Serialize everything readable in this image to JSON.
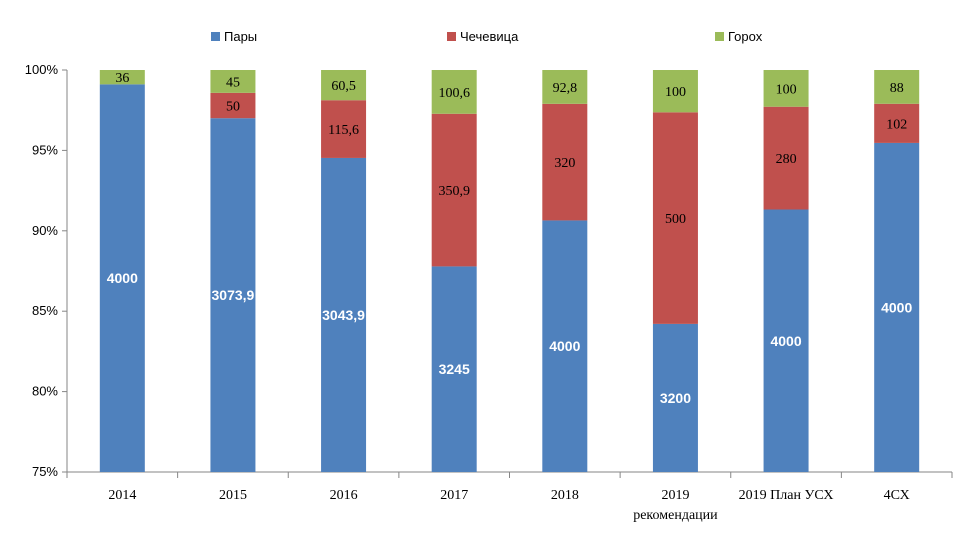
{
  "chart_data": {
    "type": "bar",
    "stacked": "percent",
    "categories": [
      "2014",
      "2015",
      "2016",
      "2017",
      "2018",
      "2019\nрекомендации",
      "2019 План УСХ",
      "4СХ"
    ],
    "series": [
      {
        "name": "Пары",
        "color": "#4F81BD",
        "values": [
          4000,
          3073.9,
          3043.9,
          3245,
          4000,
          3200,
          4000,
          4000
        ],
        "labels": [
          "4000",
          "3073,9",
          "3043,9",
          "3245",
          "4000",
          "3200",
          "4000",
          "4000"
        ]
      },
      {
        "name": "Чечевица",
        "color": "#C0504D",
        "values": [
          0,
          50,
          115.6,
          350.9,
          320,
          500,
          280,
          102
        ],
        "labels": [
          "",
          "50",
          "115,6",
          "350,9",
          "320",
          "500",
          "280",
          "102"
        ]
      },
      {
        "name": "Горох",
        "color": "#9BBB59",
        "values": [
          36,
          45,
          60.5,
          100.6,
          92.8,
          100,
          100,
          88
        ],
        "labels": [
          "36",
          "45",
          "60,5",
          "100,6",
          "92,8",
          "100",
          "100",
          "88"
        ]
      }
    ],
    "ylim": [
      75,
      100
    ],
    "yticks": [
      "75%",
      "80%",
      "85%",
      "90%",
      "95%",
      "100%"
    ],
    "grid": false,
    "legend": "top",
    "title": "",
    "xlabel": "",
    "ylabel": ""
  }
}
